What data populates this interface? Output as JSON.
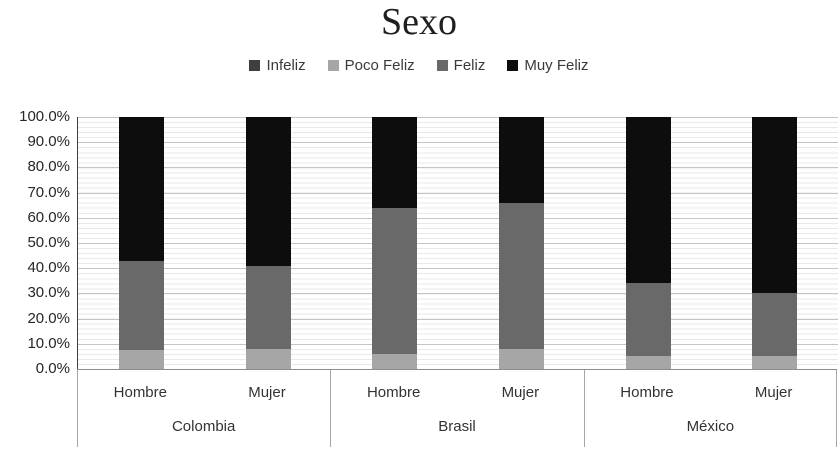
{
  "title": "Sexo",
  "legend": {
    "items": [
      {
        "label": "Infeliz",
        "color": "#3f3f3f"
      },
      {
        "label": "Poco Feliz",
        "color": "#a6a6a6"
      },
      {
        "label": "Feliz",
        "color": "#696969"
      },
      {
        "label": "Muy Feliz",
        "color": "#0d0d0d"
      }
    ]
  },
  "y_axis": {
    "tick_labels": [
      "100.0%",
      "90.0%",
      "80.0%",
      "70.0%",
      "60.0%",
      "50.0%",
      "40.0%",
      "30.0%",
      "20.0%",
      "10.0%",
      "0.0%"
    ]
  },
  "x_axis": {
    "groups": [
      "Colombia",
      "Brasil",
      "México"
    ],
    "subcategories": [
      "Hombre",
      "Mujer"
    ]
  },
  "chart_data": {
    "type": "bar",
    "stacked": true,
    "orientation": "vertical",
    "title": "Sexo",
    "categories": [
      "Colombia Hombre",
      "Colombia Mujer",
      "Brasil Hombre",
      "Brasil Mujer",
      "México Hombre",
      "México Mujer"
    ],
    "series": [
      {
        "name": "Infeliz",
        "color": "#3f3f3f",
        "values": [
          0,
          0,
          0,
          0,
          0,
          0
        ]
      },
      {
        "name": "Poco Feliz",
        "color": "#a6a6a6",
        "values": [
          7.5,
          8,
          6,
          8,
          5,
          5
        ]
      },
      {
        "name": "Feliz",
        "color": "#696969",
        "values": [
          35.5,
          33,
          58,
          58,
          29,
          25
        ]
      },
      {
        "name": "Muy Feliz",
        "color": "#0d0d0d",
        "values": [
          57,
          59,
          36,
          34,
          66,
          70
        ]
      }
    ],
    "ylabel": "",
    "xlabel": "",
    "ylim": [
      0,
      100
    ],
    "y_tick_interval": 10,
    "y_minor_grid_interval": 2,
    "y_tick_format": "0.0%",
    "grid": "major-and-minor-horizontal",
    "legend_position": "top"
  }
}
